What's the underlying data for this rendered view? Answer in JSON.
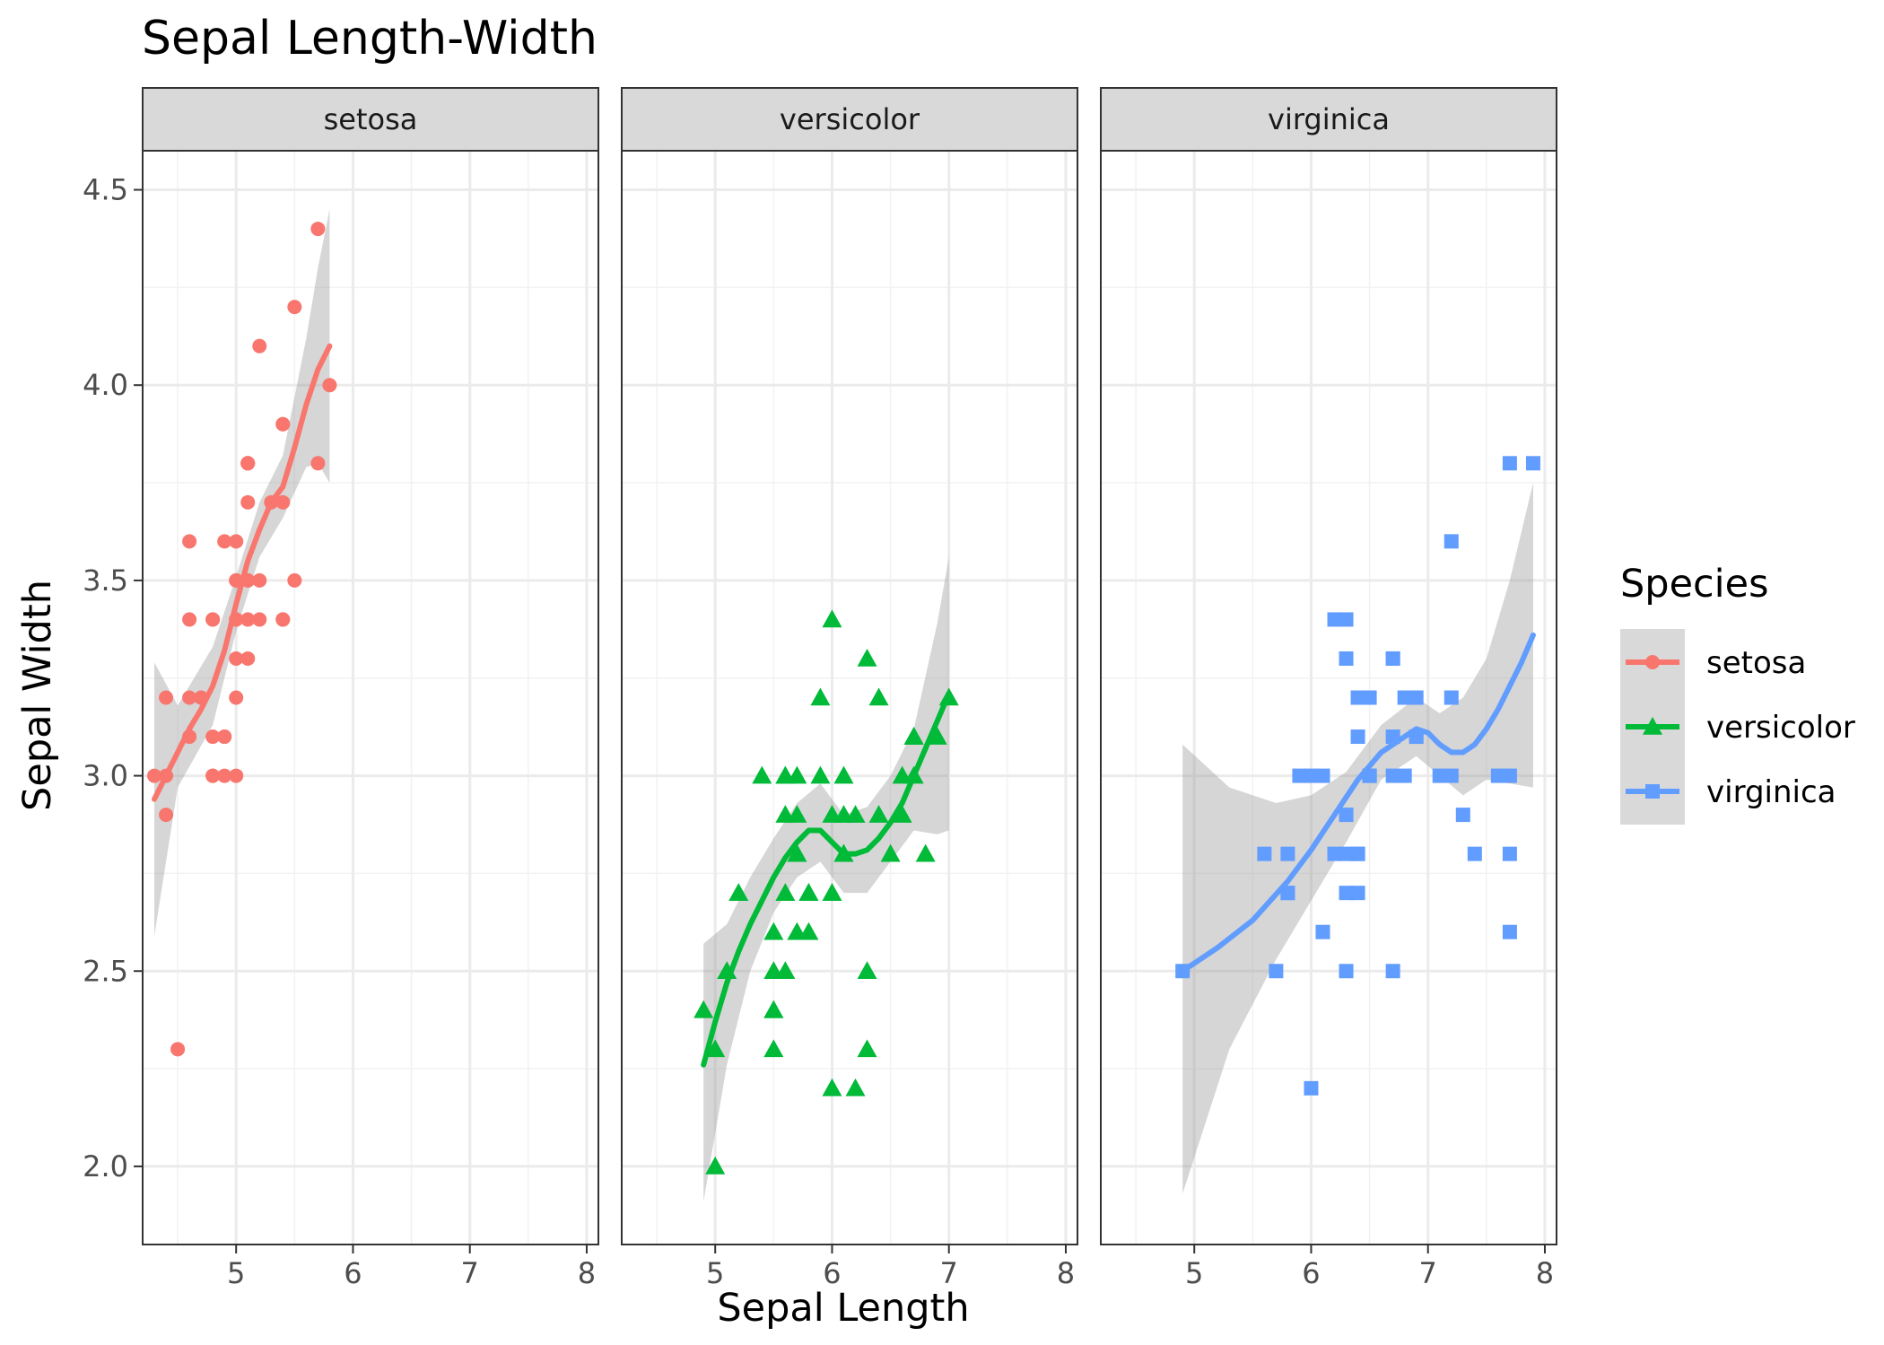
{
  "chart_data": {
    "type": "scatter",
    "title": "Sepal Length-Width",
    "xlabel": "Sepal Length",
    "ylabel": "Sepal Width",
    "xlim": [
      4.2,
      8.1
    ],
    "ylim": [
      1.8,
      4.6
    ],
    "x_ticks": [
      "5",
      "6",
      "7",
      "8"
    ],
    "y_ticks": [
      "2.0",
      "2.5",
      "3.0",
      "3.5",
      "4.0",
      "4.5"
    ],
    "grid": true,
    "legend": {
      "title": "Species",
      "placement": "right",
      "entries": [
        "setosa",
        "versicolor",
        "virginica"
      ]
    },
    "facets": [
      "setosa",
      "versicolor",
      "virginica"
    ],
    "series": [
      {
        "name": "setosa",
        "color": "#F8766D",
        "marker": "circle",
        "points": [
          [
            5.1,
            3.5
          ],
          [
            4.9,
            3.0
          ],
          [
            4.7,
            3.2
          ],
          [
            4.6,
            3.1
          ],
          [
            5.0,
            3.6
          ],
          [
            5.4,
            3.9
          ],
          [
            4.6,
            3.4
          ],
          [
            5.0,
            3.4
          ],
          [
            4.4,
            2.9
          ],
          [
            4.9,
            3.1
          ],
          [
            5.4,
            3.7
          ],
          [
            4.8,
            3.4
          ],
          [
            4.8,
            3.0
          ],
          [
            4.3,
            3.0
          ],
          [
            5.8,
            4.0
          ],
          [
            5.7,
            4.4
          ],
          [
            5.4,
            3.9
          ],
          [
            5.1,
            3.5
          ],
          [
            5.7,
            3.8
          ],
          [
            5.1,
            3.8
          ],
          [
            5.4,
            3.4
          ],
          [
            5.1,
            3.7
          ],
          [
            4.6,
            3.6
          ],
          [
            5.1,
            3.3
          ],
          [
            4.8,
            3.4
          ],
          [
            5.0,
            3.0
          ],
          [
            5.0,
            3.4
          ],
          [
            5.2,
            3.5
          ],
          [
            5.2,
            3.4
          ],
          [
            4.7,
            3.2
          ],
          [
            4.8,
            3.1
          ],
          [
            5.4,
            3.4
          ],
          [
            5.2,
            4.1
          ],
          [
            5.5,
            4.2
          ],
          [
            4.9,
            3.1
          ],
          [
            5.0,
            3.2
          ],
          [
            5.5,
            3.5
          ],
          [
            4.9,
            3.6
          ],
          [
            4.4,
            3.0
          ],
          [
            5.1,
            3.4
          ],
          [
            5.0,
            3.5
          ],
          [
            4.5,
            2.3
          ],
          [
            4.4,
            3.2
          ],
          [
            5.0,
            3.5
          ],
          [
            5.1,
            3.8
          ],
          [
            4.8,
            3.0
          ],
          [
            5.1,
            3.8
          ],
          [
            4.6,
            3.2
          ],
          [
            5.3,
            3.7
          ],
          [
            5.0,
            3.3
          ]
        ],
        "smooth": [
          [
            4.3,
            2.94
          ],
          [
            4.4,
            3.0
          ],
          [
            4.5,
            3.06
          ],
          [
            4.6,
            3.12
          ],
          [
            4.7,
            3.17
          ],
          [
            4.8,
            3.23
          ],
          [
            4.9,
            3.32
          ],
          [
            5.0,
            3.44
          ],
          [
            5.1,
            3.55
          ],
          [
            5.2,
            3.63
          ],
          [
            5.3,
            3.7
          ],
          [
            5.4,
            3.74
          ],
          [
            5.5,
            3.84
          ],
          [
            5.6,
            3.95
          ],
          [
            5.7,
            4.04
          ],
          [
            5.8,
            4.1
          ]
        ],
        "band": [
          [
            4.3,
            2.59,
            3.29
          ],
          [
            4.5,
            2.97,
            3.18
          ],
          [
            4.8,
            3.13,
            3.33
          ],
          [
            5.0,
            3.37,
            3.51
          ],
          [
            5.2,
            3.56,
            3.7
          ],
          [
            5.4,
            3.66,
            3.82
          ],
          [
            5.6,
            3.79,
            4.12
          ],
          [
            5.7,
            3.8,
            4.3
          ],
          [
            5.8,
            3.75,
            4.45
          ]
        ]
      },
      {
        "name": "versicolor",
        "color": "#00BA38",
        "marker": "triangle",
        "points": [
          [
            7.0,
            3.2
          ],
          [
            6.4,
            3.2
          ],
          [
            6.9,
            3.1
          ],
          [
            5.5,
            2.3
          ],
          [
            6.5,
            2.8
          ],
          [
            5.7,
            2.8
          ],
          [
            6.3,
            3.3
          ],
          [
            4.9,
            2.4
          ],
          [
            6.6,
            2.9
          ],
          [
            5.2,
            2.7
          ],
          [
            5.0,
            2.0
          ],
          [
            5.9,
            3.0
          ],
          [
            6.0,
            2.2
          ],
          [
            6.1,
            2.9
          ],
          [
            5.6,
            2.9
          ],
          [
            6.7,
            3.1
          ],
          [
            5.6,
            3.0
          ],
          [
            5.8,
            2.7
          ],
          [
            6.2,
            2.2
          ],
          [
            5.6,
            2.5
          ],
          [
            5.9,
            3.2
          ],
          [
            6.1,
            2.8
          ],
          [
            6.3,
            2.5
          ],
          [
            6.1,
            2.8
          ],
          [
            6.4,
            2.9
          ],
          [
            6.6,
            3.0
          ],
          [
            6.8,
            2.8
          ],
          [
            6.7,
            3.0
          ],
          [
            6.0,
            2.9
          ],
          [
            5.7,
            2.6
          ],
          [
            5.5,
            2.4
          ],
          [
            5.5,
            2.4
          ],
          [
            5.8,
            2.7
          ],
          [
            6.0,
            2.7
          ],
          [
            5.4,
            3.0
          ],
          [
            6.0,
            3.4
          ],
          [
            6.7,
            3.1
          ],
          [
            6.3,
            2.3
          ],
          [
            5.6,
            3.0
          ],
          [
            5.5,
            2.5
          ],
          [
            5.5,
            2.6
          ],
          [
            6.1,
            3.0
          ],
          [
            5.8,
            2.6
          ],
          [
            5.0,
            2.3
          ],
          [
            5.6,
            2.7
          ],
          [
            5.7,
            3.0
          ],
          [
            5.7,
            2.9
          ],
          [
            6.2,
            2.9
          ],
          [
            5.1,
            2.5
          ],
          [
            5.7,
            2.8
          ]
        ],
        "smooth": [
          [
            4.9,
            2.26
          ],
          [
            5.0,
            2.37
          ],
          [
            5.1,
            2.47
          ],
          [
            5.2,
            2.55
          ],
          [
            5.3,
            2.62
          ],
          [
            5.4,
            2.68
          ],
          [
            5.5,
            2.74
          ],
          [
            5.6,
            2.79
          ],
          [
            5.7,
            2.83
          ],
          [
            5.8,
            2.86
          ],
          [
            5.9,
            2.86
          ],
          [
            6.0,
            2.83
          ],
          [
            6.1,
            2.8
          ],
          [
            6.2,
            2.8
          ],
          [
            6.3,
            2.81
          ],
          [
            6.4,
            2.84
          ],
          [
            6.5,
            2.88
          ],
          [
            6.6,
            2.93
          ],
          [
            6.7,
            3.0
          ],
          [
            6.8,
            3.07
          ],
          [
            6.9,
            3.14
          ],
          [
            7.0,
            3.21
          ]
        ],
        "band": [
          [
            4.9,
            1.91,
            2.57
          ],
          [
            5.1,
            2.26,
            2.62
          ],
          [
            5.3,
            2.5,
            2.74
          ],
          [
            5.5,
            2.65,
            2.84
          ],
          [
            5.7,
            2.74,
            2.93
          ],
          [
            5.9,
            2.78,
            2.98
          ],
          [
            6.1,
            2.7,
            2.9
          ],
          [
            6.3,
            2.7,
            2.92
          ],
          [
            6.5,
            2.78,
            3.0
          ],
          [
            6.7,
            2.86,
            3.12
          ],
          [
            6.9,
            2.85,
            3.39
          ],
          [
            7.0,
            2.86,
            3.56
          ]
        ]
      },
      {
        "name": "virginica",
        "color": "#619CFF",
        "marker": "square",
        "points": [
          [
            6.3,
            3.3
          ],
          [
            5.8,
            2.7
          ],
          [
            7.1,
            3.0
          ],
          [
            6.3,
            2.9
          ],
          [
            6.5,
            3.0
          ],
          [
            7.6,
            3.0
          ],
          [
            4.9,
            2.5
          ],
          [
            7.3,
            2.9
          ],
          [
            6.7,
            2.5
          ],
          [
            7.2,
            3.6
          ],
          [
            6.5,
            3.2
          ],
          [
            6.4,
            2.7
          ],
          [
            6.8,
            3.0
          ],
          [
            5.7,
            2.5
          ],
          [
            5.8,
            2.8
          ],
          [
            6.4,
            3.2
          ],
          [
            6.5,
            3.0
          ],
          [
            7.7,
            3.8
          ],
          [
            7.7,
            2.6
          ],
          [
            6.0,
            2.2
          ],
          [
            6.9,
            3.2
          ],
          [
            5.6,
            2.8
          ],
          [
            7.7,
            2.8
          ],
          [
            6.3,
            2.7
          ],
          [
            6.7,
            3.3
          ],
          [
            7.2,
            3.2
          ],
          [
            6.2,
            2.8
          ],
          [
            6.1,
            3.0
          ],
          [
            6.4,
            2.8
          ],
          [
            7.2,
            3.0
          ],
          [
            7.4,
            2.8
          ],
          [
            7.9,
            3.8
          ],
          [
            6.4,
            2.8
          ],
          [
            6.3,
            2.8
          ],
          [
            6.1,
            2.6
          ],
          [
            7.7,
            3.0
          ],
          [
            6.3,
            3.4
          ],
          [
            6.4,
            3.1
          ],
          [
            6.0,
            3.0
          ],
          [
            6.9,
            3.1
          ],
          [
            6.7,
            3.1
          ],
          [
            6.9,
            3.1
          ],
          [
            5.8,
            2.7
          ],
          [
            6.8,
            3.2
          ],
          [
            6.7,
            3.3
          ],
          [
            6.7,
            3.0
          ],
          [
            6.3,
            2.5
          ],
          [
            6.5,
            3.0
          ],
          [
            6.2,
            3.4
          ],
          [
            5.9,
            3.0
          ]
        ],
        "smooth": [
          [
            4.9,
            2.5
          ],
          [
            5.2,
            2.56
          ],
          [
            5.5,
            2.63
          ],
          [
            5.8,
            2.73
          ],
          [
            6.0,
            2.81
          ],
          [
            6.2,
            2.9
          ],
          [
            6.4,
            2.99
          ],
          [
            6.6,
            3.06
          ],
          [
            6.8,
            3.1
          ],
          [
            6.9,
            3.12
          ],
          [
            7.0,
            3.11
          ],
          [
            7.1,
            3.08
          ],
          [
            7.2,
            3.06
          ],
          [
            7.3,
            3.06
          ],
          [
            7.4,
            3.08
          ],
          [
            7.5,
            3.12
          ],
          [
            7.6,
            3.17
          ],
          [
            7.7,
            3.23
          ],
          [
            7.8,
            3.29
          ],
          [
            7.9,
            3.36
          ]
        ],
        "band": [
          [
            4.9,
            1.93,
            3.08
          ],
          [
            5.3,
            2.3,
            2.97
          ],
          [
            5.7,
            2.53,
            2.93
          ],
          [
            6.0,
            2.68,
            2.95
          ],
          [
            6.3,
            2.83,
            3.01
          ],
          [
            6.6,
            2.99,
            3.13
          ],
          [
            6.9,
            3.05,
            3.2
          ],
          [
            7.1,
            3.0,
            3.16
          ],
          [
            7.3,
            2.95,
            3.2
          ],
          [
            7.5,
            2.99,
            3.3
          ],
          [
            7.7,
            2.98,
            3.5
          ],
          [
            7.9,
            2.97,
            3.75
          ]
        ]
      }
    ]
  }
}
